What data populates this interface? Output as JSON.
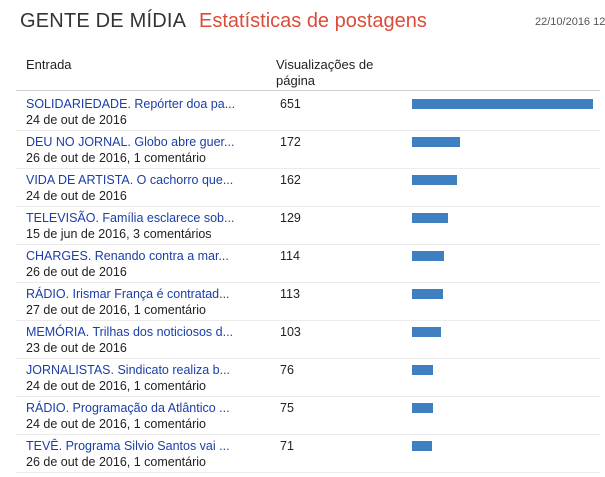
{
  "header": {
    "blog_name": "GENTE DE MÍDIA",
    "separator": "·",
    "page_title": "Estatísticas de postagens",
    "date": "22/10/2016 12"
  },
  "table": {
    "col_entry": "Entrada",
    "col_views": "Visualizações de página",
    "bar_color": "#3d7fc1",
    "max_value": 651,
    "rows": [
      {
        "title": "SOLIDARIEDADE. Repórter doa pa...",
        "subtitle": "24 de out de 2016",
        "views": 651
      },
      {
        "title": "DEU NO JORNAL. Globo abre guer...",
        "subtitle": "26 de out de 2016, 1 comentário",
        "views": 172
      },
      {
        "title": "VIDA DE ARTISTA. O cachorro que...",
        "subtitle": "24 de out de 2016",
        "views": 162
      },
      {
        "title": "TELEVISÃO. Família esclarece sob...",
        "subtitle": "15 de jun de 2016, 3 comentários",
        "views": 129
      },
      {
        "title": "CHARGES. Renando contra a mar...",
        "subtitle": "26 de out de 2016",
        "views": 114
      },
      {
        "title": "RÁDIO. Irismar França é contratad...",
        "subtitle": "27 de out de 2016, 1 comentário",
        "views": 113
      },
      {
        "title": "MEMÓRIA. Trilhas dos noticiosos d...",
        "subtitle": "23 de out de 2016",
        "views": 103
      },
      {
        "title": "JORNALISTAS. Sindicato realiza b...",
        "subtitle": "24 de out de 2016, 1 comentário",
        "views": 76
      },
      {
        "title": "RÁDIO. Programação da Atlântico ...",
        "subtitle": "24 de out de 2016, 1 comentário",
        "views": 75
      },
      {
        "title": "TEVÊ. Programa Silvio Santos vai ...",
        "subtitle": "26 de out de 2016, 1 comentário",
        "views": 71
      }
    ]
  }
}
